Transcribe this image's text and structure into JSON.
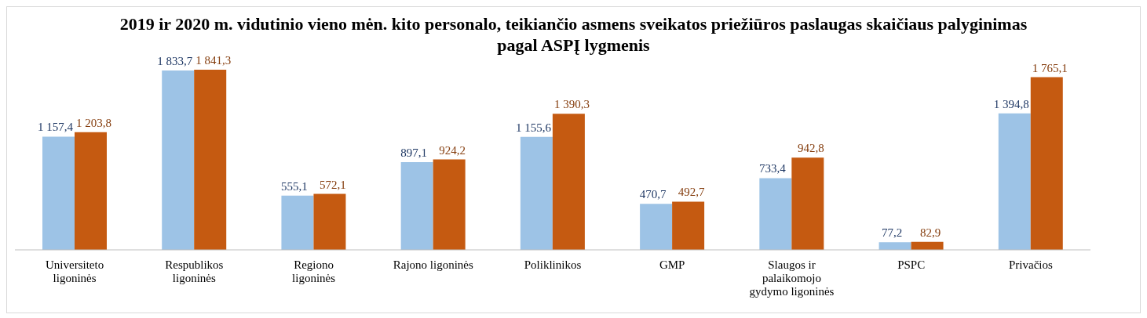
{
  "chart_data": {
    "type": "bar",
    "title": "2019 ir 2020 m. vidutinio vieno mėn. kito personalo, teikiančio asmens sveikatos priežiūros paslaugas skaičiaus palyginimas pagal ASPĮ lygmenis",
    "categories": [
      "Universiteto ligoninės",
      "Respublikos ligoninės",
      "Regiono ligoninės",
      "Rajono ligoninės",
      "Poliklinikos",
      "GMP",
      "Slaugos ir palaikomojo gydymo ligoninės",
      "PSPC",
      "Privačios"
    ],
    "series": [
      {
        "color": "#9dc3e6",
        "values": [
          1157.4,
          1833.7,
          555.1,
          897.1,
          1155.6,
          470.7,
          733.4,
          77.2,
          1394.8
        ],
        "value_labels": [
          "1 157,4",
          "1 833,7",
          "555,1",
          "897,1",
          "1 155,6",
          "470,7",
          "733,4",
          "77,2",
          "1 394,8"
        ]
      },
      {
        "color": "#c55a11",
        "values": [
          1203.8,
          1841.3,
          572.1,
          924.2,
          1390.3,
          492.7,
          942.8,
          82.9,
          1765.1
        ],
        "value_labels": [
          "1 203,8",
          "1 841,3",
          "572,1",
          "924,2",
          "1 390,3",
          "492,7",
          "942,8",
          "82,9",
          "1 765,1"
        ]
      }
    ],
    "grid": false,
    "legend": false
  }
}
